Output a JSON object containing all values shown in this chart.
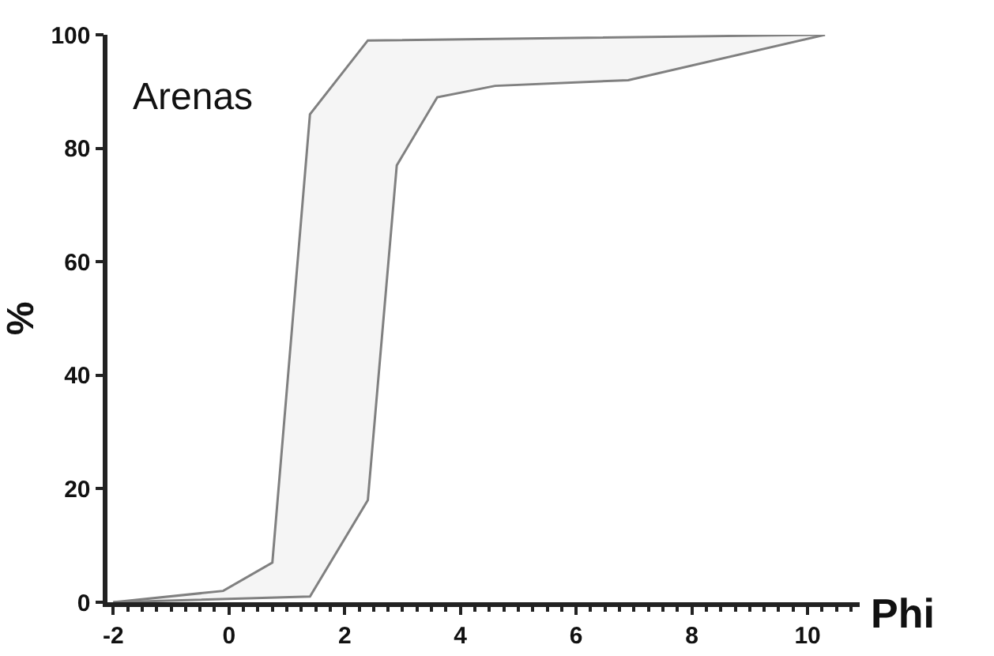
{
  "chart_data": {
    "type": "line",
    "xlabel": "Phi",
    "ylabel": "%",
    "annotations": [
      "Arenas"
    ],
    "series": [
      {
        "color": "#808080",
        "x": [
          -2,
          -0.1,
          0.75,
          1.4,
          2.4,
          10.3
        ],
        "values": [
          0,
          2,
          7,
          86,
          99,
          100
        ]
      },
      {
        "color": "#808080",
        "x": [
          -2,
          1.4,
          2.4,
          2.9,
          3.6,
          4.6,
          6.9,
          10.3
        ],
        "values": [
          0,
          1,
          18,
          77,
          89,
          91,
          92,
          100
        ]
      }
    ],
    "xlim": [
      -2.1,
      10.9
    ],
    "ylim": [
      0,
      100
    ],
    "xticks": [
      -2,
      0,
      2,
      4,
      6,
      8,
      10
    ],
    "yticks": [
      0,
      20,
      40,
      60,
      80,
      100
    ],
    "grid": false
  }
}
